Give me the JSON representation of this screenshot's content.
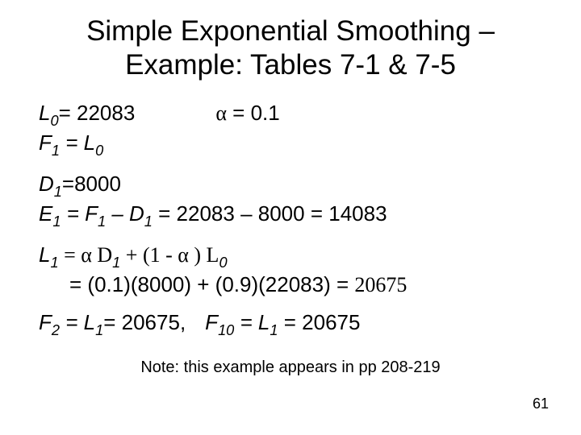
{
  "title": {
    "line1": "Simple Exponential Smoothing –",
    "line2": "Example:  Tables 7-1 & 7-5"
  },
  "block1": {
    "L0_label": "L",
    "L0_sub": "0",
    "L0_eq": "= 22083",
    "alpha": "α",
    "alpha_eq": " = 0.1",
    "F1_label": "F",
    "F1_sub": "1",
    "F1_eq": " = L",
    "F1_eq_sub": "0"
  },
  "block2": {
    "D1_label": "D",
    "D1_sub": "1",
    "D1_eq": "=8000",
    "E1_label": "E",
    "E1_sub": "1",
    "E1_text1": " = F",
    "E1_text1_sub": "1",
    "E1_text2": " – D",
    "E1_text2_sub": "1",
    "E1_text3": " = 22083 – 8000 = 14083"
  },
  "block3": {
    "L1_label": "L",
    "L1_sub": "1",
    "L1_text1": " = α D",
    "L1_text1_sub": "1",
    "L1_text2": " + (1 - α ) L",
    "L1_text2_sub": "0",
    "line2_text": "= (0.1)(8000) + (0.9)(22083) = ",
    "line2_result": "20675"
  },
  "block4": {
    "F2_label": "F",
    "F2_sub": "2",
    "F2_text1": " = L",
    "F2_text1_sub": "1",
    "F2_text2": "= 20675,",
    "F10_label": "F",
    "F10_sub": "10",
    "F10_text1": " = L",
    "F10_text1_sub": "1",
    "F10_text2": " = 20675"
  },
  "note": "Note:  this example appears in pp 208-219",
  "page_number": "61"
}
